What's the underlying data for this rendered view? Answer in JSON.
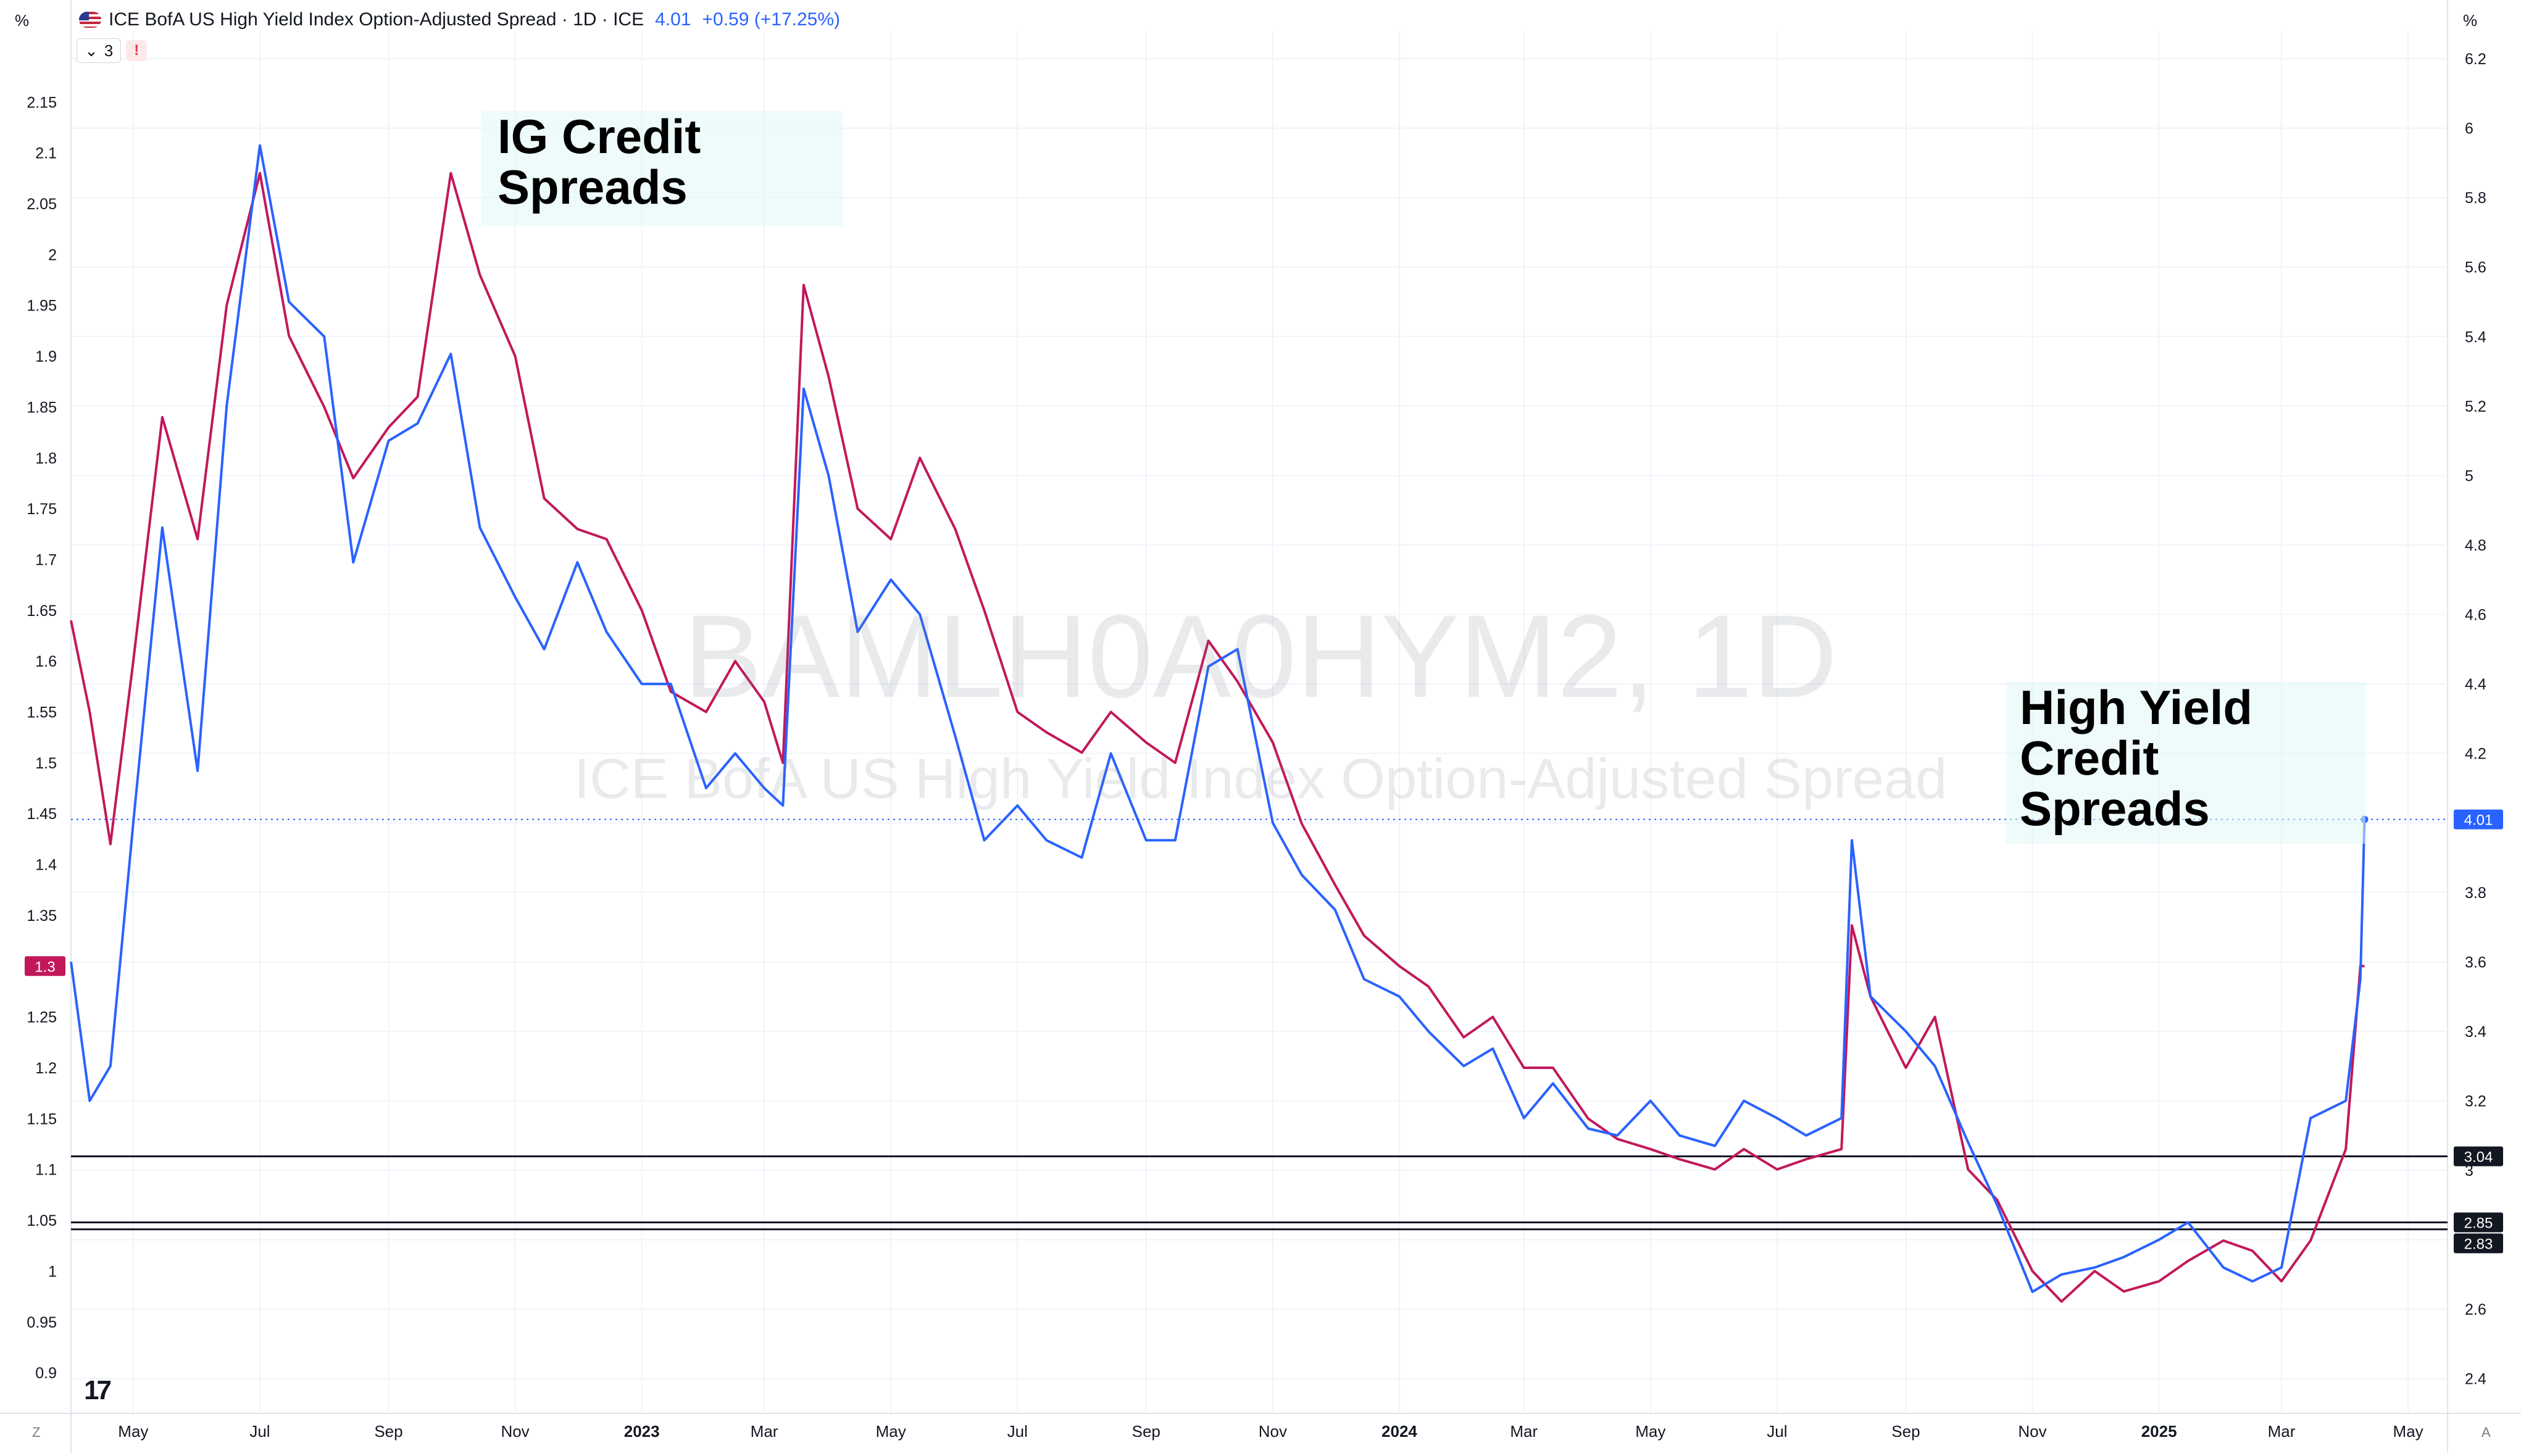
{
  "header": {
    "title": "ICE BofA US High Yield Index Option-Adjusted Spread · 1D · ICE",
    "last_value": "4.01",
    "change": "+0.59 (+17.25%)",
    "indicator_count": "3",
    "warning_glyph": "!",
    "chevron_glyph": "⌄",
    "flag_icon": "us-flag-icon"
  },
  "units": {
    "left": "%",
    "right": "%"
  },
  "watermark": {
    "symbol": "BAMLH0A0HYM2, 1D",
    "name": "ICE BofA US High Yield Index Option-Adjusted Spread"
  },
  "annotations": {
    "ig": [
      "IG Credit",
      "Spreads"
    ],
    "hy": [
      "High Yield",
      "Credit",
      "Spreads"
    ]
  },
  "corners": {
    "bottom_left": "Z",
    "bottom_right": "A"
  },
  "logo_text": "17",
  "colors": {
    "ig": "#c2185b",
    "hy": "#2962ff",
    "grid": "#f0f3fa",
    "hline": "#131722"
  },
  "chart_data": {
    "type": "line",
    "x_domain": [
      "2022-04-01",
      "2025-05-20"
    ],
    "x_ticks": [
      {
        "date": "2022-05-01",
        "label": "May",
        "bold": false
      },
      {
        "date": "2022-07-01",
        "label": "Jul",
        "bold": false
      },
      {
        "date": "2022-09-01",
        "label": "Sep",
        "bold": false
      },
      {
        "date": "2022-11-01",
        "label": "Nov",
        "bold": false
      },
      {
        "date": "2023-01-01",
        "label": "2023",
        "bold": true
      },
      {
        "date": "2023-03-01",
        "label": "Mar",
        "bold": false
      },
      {
        "date": "2023-05-01",
        "label": "May",
        "bold": false
      },
      {
        "date": "2023-07-01",
        "label": "Jul",
        "bold": false
      },
      {
        "date": "2023-09-01",
        "label": "Sep",
        "bold": false
      },
      {
        "date": "2023-11-01",
        "label": "Nov",
        "bold": false
      },
      {
        "date": "2024-01-01",
        "label": "2024",
        "bold": true
      },
      {
        "date": "2024-03-01",
        "label": "Mar",
        "bold": false
      },
      {
        "date": "2024-05-01",
        "label": "May",
        "bold": false
      },
      {
        "date": "2024-07-01",
        "label": "Jul",
        "bold": false
      },
      {
        "date": "2024-09-01",
        "label": "Sep",
        "bold": false
      },
      {
        "date": "2024-11-01",
        "label": "Nov",
        "bold": false
      },
      {
        "date": "2025-01-01",
        "label": "2025",
        "bold": true
      },
      {
        "date": "2025-03-01",
        "label": "Mar",
        "bold": false
      },
      {
        "date": "2025-05-01",
        "label": "May",
        "bold": false
      }
    ],
    "left_axis": {
      "ylim": [
        0.86,
        2.22
      ],
      "ticks": [
        "0.9",
        "0.95",
        "1",
        "1.05",
        "1.1",
        "1.15",
        "1.2",
        "1.25",
        "1.3",
        "1.35",
        "1.4",
        "1.45",
        "1.5",
        "1.55",
        "1.6",
        "1.65",
        "1.7",
        "1.75",
        "1.8",
        "1.85",
        "1.9",
        "1.95",
        "2",
        "2.05",
        "2.1",
        "2.15"
      ],
      "last_value_label": "1.3"
    },
    "right_axis": {
      "ylim": [
        2.3,
        6.28
      ],
      "ticks": [
        "2.4",
        "2.6",
        "2.8",
        "3",
        "3.2",
        "3.4",
        "3.6",
        "3.8",
        "4",
        "4.2",
        "4.4",
        "4.6",
        "4.8",
        "5",
        "5.2",
        "5.4",
        "5.6",
        "5.8",
        "6",
        "6.2"
      ],
      "last_value_label": "4.01"
    },
    "horizontal_lines": [
      {
        "value": 3.04,
        "label": "3.04"
      },
      {
        "value": 2.85,
        "label": "2.85"
      },
      {
        "value": 2.83,
        "label": "2.83"
      }
    ],
    "series": [
      {
        "name": "IG Credit Spreads",
        "axis": "left",
        "x": [
          "2022-04-01",
          "2022-04-10",
          "2022-04-20",
          "2022-05-01",
          "2022-05-15",
          "2022-06-01",
          "2022-06-15",
          "2022-07-01",
          "2022-07-15",
          "2022-08-01",
          "2022-08-15",
          "2022-09-01",
          "2022-09-15",
          "2022-10-01",
          "2022-10-15",
          "2022-11-01",
          "2022-11-15",
          "2022-12-01",
          "2022-12-15",
          "2023-01-01",
          "2023-01-15",
          "2023-02-01",
          "2023-02-15",
          "2023-03-01",
          "2023-03-10",
          "2023-03-20",
          "2023-04-01",
          "2023-04-15",
          "2023-05-01",
          "2023-05-15",
          "2023-06-01",
          "2023-06-15",
          "2023-07-01",
          "2023-07-15",
          "2023-08-01",
          "2023-08-15",
          "2023-09-01",
          "2023-09-15",
          "2023-10-01",
          "2023-10-15",
          "2023-11-01",
          "2023-11-15",
          "2023-12-01",
          "2023-12-15",
          "2024-01-01",
          "2024-01-15",
          "2024-02-01",
          "2024-02-15",
          "2024-03-01",
          "2024-03-15",
          "2024-04-01",
          "2024-04-15",
          "2024-05-01",
          "2024-05-15",
          "2024-06-01",
          "2024-06-15",
          "2024-07-01",
          "2024-07-15",
          "2024-08-01",
          "2024-08-06",
          "2024-08-15",
          "2024-09-01",
          "2024-09-15",
          "2024-10-01",
          "2024-10-15",
          "2024-11-01",
          "2024-11-15",
          "2024-12-01",
          "2024-12-15",
          "2025-01-01",
          "2025-01-15",
          "2025-02-01",
          "2025-02-15",
          "2025-03-01",
          "2025-03-15",
          "2025-04-01",
          "2025-04-08",
          "2025-04-10"
        ],
        "values": [
          1.64,
          1.55,
          1.42,
          1.6,
          1.84,
          1.72,
          1.95,
          2.08,
          1.92,
          1.85,
          1.78,
          1.83,
          1.86,
          2.08,
          1.98,
          1.9,
          1.76,
          1.73,
          1.72,
          1.65,
          1.57,
          1.55,
          1.6,
          1.56,
          1.5,
          1.97,
          1.88,
          1.75,
          1.72,
          1.8,
          1.73,
          1.65,
          1.55,
          1.53,
          1.51,
          1.55,
          1.52,
          1.5,
          1.62,
          1.58,
          1.52,
          1.44,
          1.38,
          1.33,
          1.3,
          1.28,
          1.23,
          1.25,
          1.2,
          1.2,
          1.15,
          1.13,
          1.12,
          1.11,
          1.1,
          1.12,
          1.1,
          1.11,
          1.12,
          1.34,
          1.27,
          1.2,
          1.25,
          1.1,
          1.07,
          1.0,
          0.97,
          1.0,
          0.98,
          0.99,
          1.01,
          1.03,
          1.02,
          0.99,
          1.03,
          1.12,
          1.3,
          1.3
        ]
      },
      {
        "name": "High Yield Credit Spreads",
        "axis": "right",
        "x": [
          "2022-04-01",
          "2022-04-10",
          "2022-04-20",
          "2022-05-01",
          "2022-05-15",
          "2022-06-01",
          "2022-06-15",
          "2022-07-01",
          "2022-07-15",
          "2022-08-01",
          "2022-08-15",
          "2022-09-01",
          "2022-09-15",
          "2022-10-01",
          "2022-10-15",
          "2022-11-01",
          "2022-11-15",
          "2022-12-01",
          "2022-12-15",
          "2023-01-01",
          "2023-01-15",
          "2023-02-01",
          "2023-02-15",
          "2023-03-01",
          "2023-03-10",
          "2023-03-20",
          "2023-04-01",
          "2023-04-15",
          "2023-05-01",
          "2023-05-15",
          "2023-06-01",
          "2023-06-15",
          "2023-07-01",
          "2023-07-15",
          "2023-08-01",
          "2023-08-15",
          "2023-09-01",
          "2023-09-15",
          "2023-10-01",
          "2023-10-15",
          "2023-11-01",
          "2023-11-15",
          "2023-12-01",
          "2023-12-15",
          "2024-01-01",
          "2024-01-15",
          "2024-02-01",
          "2024-02-15",
          "2024-03-01",
          "2024-03-15",
          "2024-04-01",
          "2024-04-15",
          "2024-05-01",
          "2024-05-15",
          "2024-06-01",
          "2024-06-15",
          "2024-07-01",
          "2024-07-15",
          "2024-08-01",
          "2024-08-06",
          "2024-08-15",
          "2024-09-01",
          "2024-09-15",
          "2024-10-01",
          "2024-10-15",
          "2024-11-01",
          "2024-11-15",
          "2024-12-01",
          "2024-12-15",
          "2025-01-01",
          "2025-01-15",
          "2025-02-01",
          "2025-02-15",
          "2025-03-01",
          "2025-03-15",
          "2025-04-01",
          "2025-04-08",
          "2025-04-10"
        ],
        "values": [
          3.6,
          3.2,
          3.3,
          4.0,
          4.85,
          4.15,
          5.2,
          5.95,
          5.5,
          5.4,
          4.75,
          5.1,
          5.15,
          5.35,
          4.85,
          4.65,
          4.5,
          4.75,
          4.55,
          4.4,
          4.4,
          4.1,
          4.2,
          4.1,
          4.05,
          5.25,
          5.0,
          4.55,
          4.7,
          4.6,
          4.25,
          3.95,
          4.05,
          3.95,
          3.9,
          4.2,
          3.95,
          3.95,
          4.45,
          4.5,
          4.0,
          3.85,
          3.75,
          3.55,
          3.5,
          3.4,
          3.3,
          3.35,
          3.15,
          3.25,
          3.12,
          3.1,
          3.2,
          3.1,
          3.07,
          3.2,
          3.15,
          3.1,
          3.15,
          3.95,
          3.5,
          3.4,
          3.3,
          3.08,
          2.9,
          2.65,
          2.7,
          2.72,
          2.75,
          2.8,
          2.85,
          2.72,
          2.68,
          2.72,
          3.15,
          3.2,
          3.55,
          4.01
        ]
      }
    ]
  }
}
